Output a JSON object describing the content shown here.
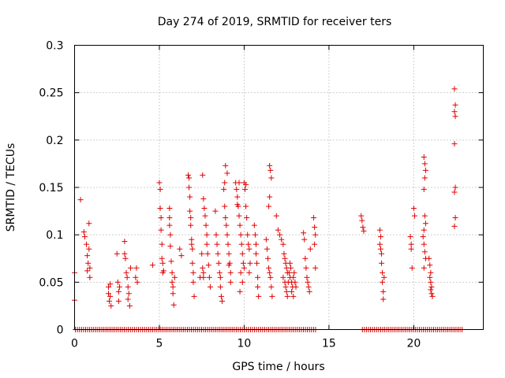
{
  "chart_data": {
    "type": "scatter",
    "title": "Day 274 of 2019, SRMTID for receiver ters",
    "xlabel": "GPS time / hours",
    "ylabel": "SRMTID / TECUs",
    "xlim": [
      0,
      24.1
    ],
    "ylim": [
      0,
      0.3
    ],
    "xticks": [
      0,
      5,
      10,
      15,
      20
    ],
    "xtick_labels": [
      "0",
      "5",
      "10",
      "15",
      "20"
    ],
    "yticks": [
      0,
      0.05,
      0.1,
      0.15,
      0.2,
      0.25,
      0.3
    ],
    "ytick_labels": [
      "0",
      "0.05",
      "0.1",
      "0.15",
      "0.2",
      "0.25",
      "0.3"
    ],
    "grid": true,
    "marker": "plus",
    "color": "#e00000",
    "series": [
      {
        "name": "SRMTID",
        "points": [
          [
            0.0,
            0.06
          ],
          [
            0.0,
            0.031
          ],
          [
            0.35,
            0.137
          ],
          [
            0.55,
            0.103
          ],
          [
            0.6,
            0.098
          ],
          [
            0.7,
            0.09
          ],
          [
            0.75,
            0.078
          ],
          [
            0.8,
            0.07
          ],
          [
            0.75,
            0.062
          ],
          [
            0.85,
            0.112
          ],
          [
            0.85,
            0.085
          ],
          [
            0.9,
            0.065
          ],
          [
            0.9,
            0.055
          ],
          [
            2.0,
            0.045
          ],
          [
            2.0,
            0.038
          ],
          [
            2.05,
            0.03
          ],
          [
            2.1,
            0.048
          ],
          [
            2.1,
            0.035
          ],
          [
            2.15,
            0.025
          ],
          [
            2.5,
            0.08
          ],
          [
            2.55,
            0.05
          ],
          [
            2.6,
            0.04
          ],
          [
            2.6,
            0.03
          ],
          [
            2.65,
            0.045
          ],
          [
            2.95,
            0.093
          ],
          [
            2.95,
            0.08
          ],
          [
            3.0,
            0.075
          ],
          [
            3.05,
            0.06
          ],
          [
            3.1,
            0.055
          ],
          [
            3.15,
            0.045
          ],
          [
            3.15,
            0.032
          ],
          [
            3.2,
            0.038
          ],
          [
            3.25,
            0.025
          ],
          [
            3.3,
            0.065
          ],
          [
            3.6,
            0.055
          ],
          [
            3.65,
            0.065
          ],
          [
            3.7,
            0.05
          ],
          [
            4.6,
            0.068
          ],
          [
            5.0,
            0.155
          ],
          [
            5.05,
            0.148
          ],
          [
            5.05,
            0.128
          ],
          [
            5.1,
            0.118
          ],
          [
            5.1,
            0.105
          ],
          [
            5.15,
            0.09
          ],
          [
            5.15,
            0.075
          ],
          [
            5.2,
            0.07
          ],
          [
            5.2,
            0.06
          ],
          [
            5.25,
            0.062
          ],
          [
            5.6,
            0.128
          ],
          [
            5.6,
            0.118
          ],
          [
            5.6,
            0.11
          ],
          [
            5.65,
            0.1
          ],
          [
            5.65,
            0.088
          ],
          [
            5.7,
            0.072
          ],
          [
            5.75,
            0.06
          ],
          [
            5.75,
            0.05
          ],
          [
            5.8,
            0.045
          ],
          [
            5.8,
            0.038
          ],
          [
            5.85,
            0.026
          ],
          [
            5.9,
            0.055
          ],
          [
            6.2,
            0.085
          ],
          [
            6.3,
            0.078
          ],
          [
            6.7,
            0.163
          ],
          [
            6.75,
            0.16
          ],
          [
            6.75,
            0.15
          ],
          [
            6.8,
            0.14
          ],
          [
            6.8,
            0.125
          ],
          [
            6.85,
            0.118
          ],
          [
            6.85,
            0.11
          ],
          [
            6.9,
            0.095
          ],
          [
            6.9,
            0.09
          ],
          [
            6.95,
            0.085
          ],
          [
            6.95,
            0.07
          ],
          [
            7.0,
            0.06
          ],
          [
            7.0,
            0.05
          ],
          [
            7.05,
            0.035
          ],
          [
            7.4,
            0.055
          ],
          [
            7.5,
            0.08
          ],
          [
            7.55,
            0.065
          ],
          [
            7.6,
            0.06
          ],
          [
            7.6,
            0.055
          ],
          [
            7.55,
            0.163
          ],
          [
            7.6,
            0.138
          ],
          [
            7.65,
            0.128
          ],
          [
            7.7,
            0.12
          ],
          [
            7.75,
            0.11
          ],
          [
            7.8,
            0.1
          ],
          [
            7.8,
            0.09
          ],
          [
            7.85,
            0.08
          ],
          [
            7.9,
            0.068
          ],
          [
            7.95,
            0.055
          ],
          [
            8.0,
            0.045
          ],
          [
            8.3,
            0.125
          ],
          [
            8.35,
            0.1
          ],
          [
            8.4,
            0.09
          ],
          [
            8.45,
            0.08
          ],
          [
            8.5,
            0.07
          ],
          [
            8.55,
            0.06
          ],
          [
            8.6,
            0.055
          ],
          [
            8.6,
            0.045
          ],
          [
            8.65,
            0.035
          ],
          [
            8.7,
            0.03
          ],
          [
            8.8,
            0.148
          ],
          [
            8.85,
            0.13
          ],
          [
            8.9,
            0.118
          ],
          [
            8.95,
            0.11
          ],
          [
            9.0,
            0.1
          ],
          [
            9.05,
            0.09
          ],
          [
            9.1,
            0.08
          ],
          [
            9.15,
            0.07
          ],
          [
            9.2,
            0.06
          ],
          [
            9.2,
            0.05
          ],
          [
            8.9,
            0.173
          ],
          [
            9.0,
            0.165
          ],
          [
            8.85,
            0.155
          ],
          [
            9.1,
            0.068
          ],
          [
            9.5,
            0.155
          ],
          [
            9.55,
            0.148
          ],
          [
            9.6,
            0.14
          ],
          [
            9.65,
            0.13
          ],
          [
            9.7,
            0.12
          ],
          [
            9.75,
            0.11
          ],
          [
            9.8,
            0.1
          ],
          [
            9.85,
            0.09
          ],
          [
            9.9,
            0.08
          ],
          [
            9.95,
            0.07
          ],
          [
            10.0,
            0.065
          ],
          [
            9.7,
            0.155
          ],
          [
            9.6,
            0.132
          ],
          [
            9.8,
            0.06
          ],
          [
            9.9,
            0.05
          ],
          [
            9.75,
            0.04
          ],
          [
            10.0,
            0.155
          ],
          [
            10.05,
            0.148
          ],
          [
            10.1,
            0.13
          ],
          [
            10.15,
            0.118
          ],
          [
            10.2,
            0.1
          ],
          [
            10.25,
            0.09
          ],
          [
            10.3,
            0.085
          ],
          [
            10.35,
            0.07
          ],
          [
            10.3,
            0.06
          ],
          [
            10.1,
            0.153
          ],
          [
            10.6,
            0.11
          ],
          [
            10.65,
            0.1
          ],
          [
            10.7,
            0.09
          ],
          [
            10.7,
            0.08
          ],
          [
            10.75,
            0.07
          ],
          [
            10.8,
            0.055
          ],
          [
            10.8,
            0.045
          ],
          [
            10.85,
            0.035
          ],
          [
            11.3,
            0.095
          ],
          [
            11.35,
            0.085
          ],
          [
            11.4,
            0.075
          ],
          [
            11.45,
            0.065
          ],
          [
            11.5,
            0.06
          ],
          [
            11.55,
            0.055
          ],
          [
            11.6,
            0.045
          ],
          [
            11.65,
            0.035
          ],
          [
            11.5,
            0.173
          ],
          [
            11.55,
            0.168
          ],
          [
            11.6,
            0.16
          ],
          [
            11.5,
            0.14
          ],
          [
            11.45,
            0.13
          ],
          [
            11.9,
            0.12
          ],
          [
            12.0,
            0.105
          ],
          [
            12.1,
            0.1
          ],
          [
            12.2,
            0.095
          ],
          [
            12.3,
            0.09
          ],
          [
            12.35,
            0.08
          ],
          [
            12.4,
            0.075
          ],
          [
            12.45,
            0.07
          ],
          [
            12.5,
            0.065
          ],
          [
            12.55,
            0.06
          ],
          [
            12.3,
            0.055
          ],
          [
            12.4,
            0.05
          ],
          [
            12.45,
            0.045
          ],
          [
            12.5,
            0.04
          ],
          [
            12.55,
            0.035
          ],
          [
            12.6,
            0.05
          ],
          [
            12.65,
            0.06
          ],
          [
            12.7,
            0.055
          ],
          [
            12.75,
            0.065
          ],
          [
            12.8,
            0.05
          ],
          [
            12.85,
            0.045
          ],
          [
            12.9,
            0.055
          ],
          [
            12.95,
            0.06
          ],
          [
            13.0,
            0.05
          ],
          [
            13.05,
            0.045
          ],
          [
            12.7,
            0.07
          ],
          [
            12.8,
            0.04
          ],
          [
            12.9,
            0.035
          ],
          [
            13.5,
            0.102
          ],
          [
            13.55,
            0.095
          ],
          [
            13.6,
            0.075
          ],
          [
            13.65,
            0.065
          ],
          [
            13.7,
            0.055
          ],
          [
            13.75,
            0.05
          ],
          [
            13.8,
            0.045
          ],
          [
            13.85,
            0.04
          ],
          [
            13.9,
            0.085
          ],
          [
            14.1,
            0.118
          ],
          [
            14.15,
            0.108
          ],
          [
            14.2,
            0.1
          ],
          [
            14.15,
            0.09
          ],
          [
            14.2,
            0.065
          ],
          [
            16.9,
            0.12
          ],
          [
            16.95,
            0.115
          ],
          [
            17.0,
            0.108
          ],
          [
            17.05,
            0.104
          ],
          [
            18.0,
            0.105
          ],
          [
            18.05,
            0.098
          ],
          [
            18.0,
            0.09
          ],
          [
            18.05,
            0.085
          ],
          [
            18.1,
            0.08
          ],
          [
            18.1,
            0.07
          ],
          [
            18.15,
            0.06
          ],
          [
            18.15,
            0.05
          ],
          [
            18.2,
            0.04
          ],
          [
            18.2,
            0.032
          ],
          [
            18.25,
            0.055
          ],
          [
            19.8,
            0.098
          ],
          [
            19.85,
            0.09
          ],
          [
            19.85,
            0.085
          ],
          [
            19.9,
            0.065
          ],
          [
            20.0,
            0.128
          ],
          [
            20.05,
            0.12
          ],
          [
            20.6,
            0.182
          ],
          [
            20.65,
            0.175
          ],
          [
            20.7,
            0.168
          ],
          [
            20.65,
            0.16
          ],
          [
            20.6,
            0.148
          ],
          [
            20.65,
            0.12
          ],
          [
            20.7,
            0.112
          ],
          [
            20.6,
            0.105
          ],
          [
            20.55,
            0.098
          ],
          [
            20.6,
            0.09
          ],
          [
            20.65,
            0.082
          ],
          [
            20.7,
            0.075
          ],
          [
            20.6,
            0.065
          ],
          [
            20.9,
            0.075
          ],
          [
            20.95,
            0.068
          ],
          [
            21.0,
            0.06
          ],
          [
            20.95,
            0.055
          ],
          [
            21.0,
            0.05
          ],
          [
            21.05,
            0.045
          ],
          [
            21.0,
            0.042
          ],
          [
            21.05,
            0.038
          ],
          [
            21.1,
            0.035
          ],
          [
            22.4,
            0.254
          ],
          [
            22.45,
            0.237
          ],
          [
            22.4,
            0.23
          ],
          [
            22.45,
            0.225
          ],
          [
            22.4,
            0.196
          ],
          [
            22.45,
            0.15
          ],
          [
            22.4,
            0.145
          ],
          [
            22.45,
            0.118
          ],
          [
            22.4,
            0.109
          ]
        ]
      },
      {
        "name": "zero values",
        "x_start": 0.05,
        "x_end": 22.85,
        "gaps": [
          [
            14.25,
            16.9
          ]
        ],
        "step": 0.12,
        "y": 0
      }
    ]
  }
}
